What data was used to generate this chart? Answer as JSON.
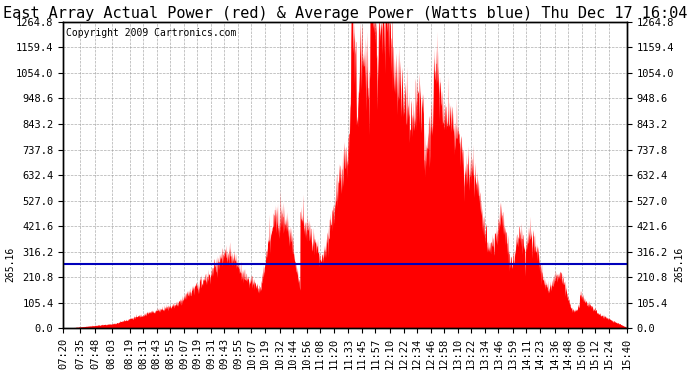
{
  "title": "East Array Actual Power (red) & Average Power (Watts blue) Thu Dec 17 16:04",
  "copyright": "Copyright 2009 Cartronics.com",
  "avg_power": 265.16,
  "ymax": 1264.8,
  "ytick_values": [
    0.0,
    105.4,
    210.8,
    316.2,
    421.6,
    527.0,
    632.4,
    737.8,
    843.2,
    948.6,
    1054.0,
    1159.4,
    1264.8
  ],
  "fill_color": "#FF0000",
  "line_color": "#0000BB",
  "avg_label": "265.16",
  "background_color": "#FFFFFF",
  "grid_color": "#AAAAAA",
  "x_labels": [
    "07:20",
    "07:35",
    "07:48",
    "08:03",
    "08:19",
    "08:31",
    "08:43",
    "08:55",
    "09:07",
    "09:19",
    "09:31",
    "09:43",
    "09:55",
    "10:07",
    "10:19",
    "10:32",
    "10:44",
    "10:56",
    "11:08",
    "11:20",
    "11:33",
    "11:45",
    "11:57",
    "12:10",
    "12:22",
    "12:34",
    "12:46",
    "12:58",
    "13:10",
    "13:22",
    "13:34",
    "13:46",
    "13:59",
    "14:11",
    "14:23",
    "14:36",
    "14:48",
    "15:00",
    "15:12",
    "15:24",
    "15:40"
  ],
  "title_fontsize": 11,
  "copyright_fontsize": 7,
  "tick_fontsize": 7.5
}
